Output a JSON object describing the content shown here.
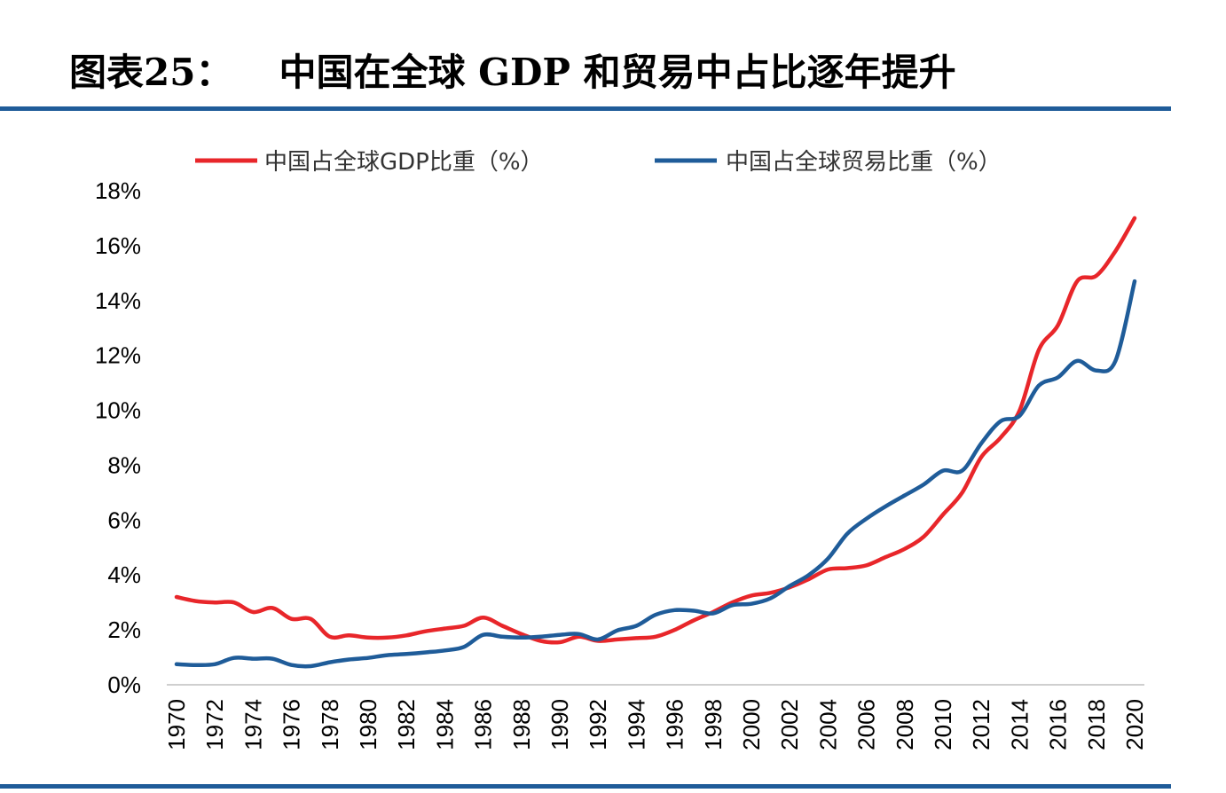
{
  "figure": {
    "label": "图表25：",
    "title": "中国在全球 GDP 和贸易中占比逐年提升",
    "rule_color": "#1F5C99"
  },
  "chart_data": {
    "type": "line",
    "x": [
      1970,
      1971,
      1972,
      1973,
      1974,
      1975,
      1976,
      1977,
      1978,
      1979,
      1980,
      1981,
      1982,
      1983,
      1984,
      1985,
      1986,
      1987,
      1988,
      1989,
      1990,
      1991,
      1992,
      1993,
      1994,
      1995,
      1996,
      1997,
      1998,
      1999,
      2000,
      2001,
      2002,
      2003,
      2004,
      2005,
      2006,
      2007,
      2008,
      2009,
      2010,
      2011,
      2012,
      2013,
      2014,
      2015,
      2016,
      2017,
      2018,
      2019,
      2020
    ],
    "x_ticks": [
      "1970",
      "1972",
      "1974",
      "1976",
      "1978",
      "1980",
      "1982",
      "1984",
      "1986",
      "1988",
      "1990",
      "1992",
      "1994",
      "1996",
      "1998",
      "2000",
      "2002",
      "2004",
      "2006",
      "2008",
      "2010",
      "2012",
      "2014",
      "2016",
      "2018",
      "2020"
    ],
    "y_ticks": [
      "0%",
      "2%",
      "4%",
      "6%",
      "8%",
      "10%",
      "12%",
      "14%",
      "16%",
      "18%"
    ],
    "ylim": [
      0,
      18
    ],
    "grid": false,
    "legend_position": "top",
    "series": [
      {
        "name": "中国占全球GDP比重（%）",
        "color": "#E8262A",
        "values": [
          3.2,
          3.05,
          3.0,
          3.0,
          2.65,
          2.8,
          2.4,
          2.4,
          1.75,
          1.8,
          1.72,
          1.72,
          1.8,
          1.95,
          2.05,
          2.15,
          2.45,
          2.15,
          1.85,
          1.6,
          1.55,
          1.75,
          1.6,
          1.65,
          1.7,
          1.75,
          2.0,
          2.35,
          2.65,
          3.0,
          3.25,
          3.35,
          3.55,
          3.85,
          4.2,
          4.25,
          4.35,
          4.65,
          4.95,
          5.4,
          6.2,
          7.0,
          8.3,
          9.0,
          10.0,
          12.2,
          13.1,
          14.7,
          14.9,
          15.8,
          17.0
        ]
      },
      {
        "name": "中国占全球贸易比重（%）",
        "color": "#1F5C99",
        "values": [
          0.75,
          0.72,
          0.75,
          0.98,
          0.95,
          0.95,
          0.72,
          0.68,
          0.82,
          0.92,
          0.98,
          1.08,
          1.12,
          1.18,
          1.25,
          1.38,
          1.82,
          1.75,
          1.72,
          1.75,
          1.82,
          1.85,
          1.65,
          1.98,
          2.15,
          2.55,
          2.72,
          2.7,
          2.6,
          2.9,
          2.95,
          3.15,
          3.6,
          4.0,
          4.6,
          5.5,
          6.05,
          6.5,
          6.9,
          7.3,
          7.8,
          7.8,
          8.8,
          9.6,
          9.8,
          10.9,
          11.2,
          11.8,
          11.45,
          11.8,
          14.7
        ]
      }
    ]
  }
}
